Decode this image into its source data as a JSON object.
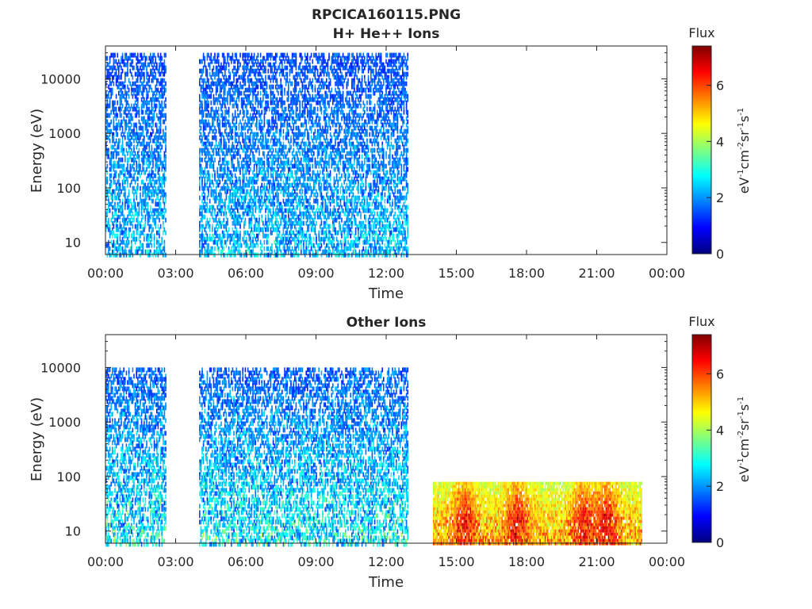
{
  "figure_title": "RPCICA160115.PNG",
  "chart_data": [
    {
      "type": "heatmap",
      "title": "H+ He++ Ions",
      "xlabel": "Time",
      "ylabel": "Energy (eV)",
      "x_ticks": [
        "00:00",
        "03:00",
        "06:00",
        "09:00",
        "12:00",
        "15:00",
        "18:00",
        "21:00",
        "00:00"
      ],
      "xlim_hours": [
        0,
        24
      ],
      "y_scale": "log",
      "y_ticks": [
        10,
        100,
        1000,
        10000
      ],
      "y_tick_labels": [
        "10",
        "100",
        "1000",
        "10000"
      ],
      "ylim": [
        6,
        40000
      ],
      "colorbar": {
        "title": "Flux",
        "label": "eV-1cm-2sr-1s-1",
        "range": [
          0,
          7.4
        ],
        "ticks": [
          "0",
          "2",
          "4",
          "6"
        ]
      },
      "regions": [
        {
          "t_start": 0.0,
          "t_end": 2.6,
          "e_min": 6,
          "e_max": 30000,
          "level_low": 1.0,
          "level_high": 3.6,
          "density": 0.5
        },
        {
          "t_start": 4.0,
          "t_end": 12.9,
          "e_min": 6,
          "e_max": 30000,
          "level_low": 1.0,
          "level_high": 3.6,
          "density": 0.5
        }
      ]
    },
    {
      "type": "heatmap",
      "title": "Other Ions",
      "xlabel": "Time",
      "ylabel": "Energy (eV)",
      "x_ticks": [
        "00:00",
        "03:00",
        "06:00",
        "09:00",
        "12:00",
        "15:00",
        "18:00",
        "21:00",
        "00:00"
      ],
      "xlim_hours": [
        0,
        24
      ],
      "y_scale": "log",
      "y_ticks": [
        10,
        100,
        1000,
        10000
      ],
      "y_tick_labels": [
        "10",
        "100",
        "1000",
        "10000"
      ],
      "ylim": [
        6,
        40000
      ],
      "colorbar": {
        "title": "Flux",
        "label": "eV-1cm-2sr-1s-1",
        "range": [
          0,
          7.4
        ],
        "ticks": [
          "0",
          "2",
          "4",
          "6"
        ]
      },
      "regions": [
        {
          "t_start": 0.0,
          "t_end": 2.6,
          "e_min": 6,
          "e_max": 10000,
          "level_low": 1.0,
          "level_high": 4.5,
          "density": 0.5
        },
        {
          "t_start": 4.0,
          "t_end": 12.9,
          "e_min": 6,
          "e_max": 10000,
          "level_low": 1.0,
          "level_high": 4.5,
          "density": 0.5
        },
        {
          "t_start": 14.0,
          "t_end": 22.9,
          "e_min": 6,
          "e_max": 80,
          "level_low": 3.8,
          "level_high": 6.8,
          "density": 0.95
        }
      ],
      "hotspots_hours": [
        15.3,
        17.6,
        20.4,
        21.4
      ]
    }
  ]
}
